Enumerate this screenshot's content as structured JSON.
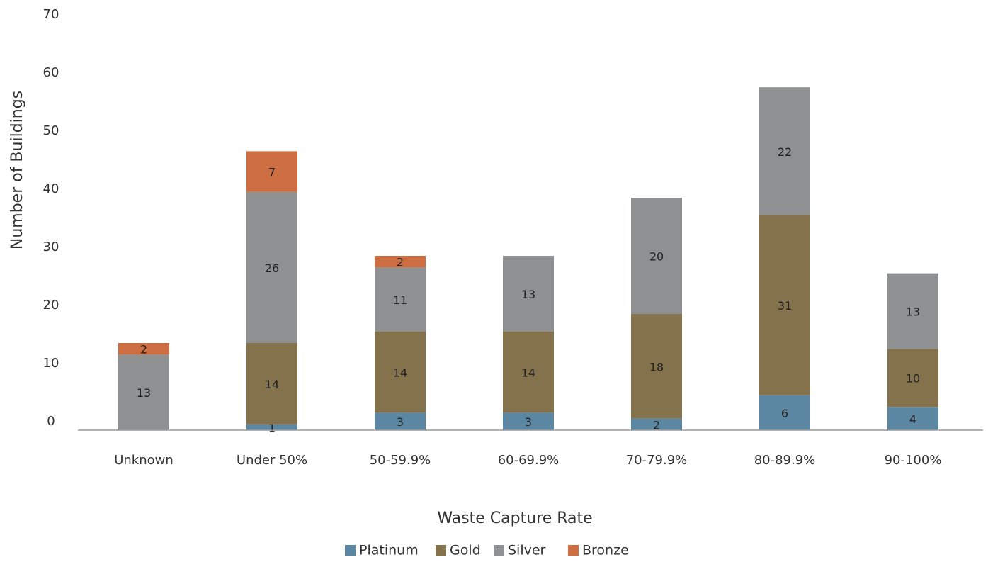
{
  "chart_data": {
    "type": "stacked_bar",
    "x_label": "Waste Capture Rate",
    "y_label": "Number of Buildings",
    "categories": [
      "Unknown",
      "Under 50%",
      "50-59.9%",
      "60-69.9%",
      "70-79.9%",
      "80-89.9%",
      "90-100%"
    ],
    "series": [
      {
        "name": "Platinum",
        "color": "#5b87a3",
        "values": [
          null,
          1,
          3,
          3,
          2,
          6,
          4
        ]
      },
      {
        "name": "Gold",
        "color": "#84724c",
        "values": [
          null,
          14,
          14,
          14,
          18,
          31,
          10
        ]
      },
      {
        "name": "Silver",
        "color": "#8f9091",
        "values": [
          13,
          26,
          11,
          13,
          20,
          22,
          13
        ]
      },
      {
        "name": "Bronze",
        "color": "#cd6e42",
        "values": [
          2,
          7,
          2,
          null,
          null,
          null,
          null
        ]
      }
    ],
    "ylim": [
      0,
      70
    ],
    "yticks": [
      0,
      10,
      20,
      30,
      40,
      50,
      60,
      70
    ],
    "grid": false,
    "legend": "bottom"
  }
}
